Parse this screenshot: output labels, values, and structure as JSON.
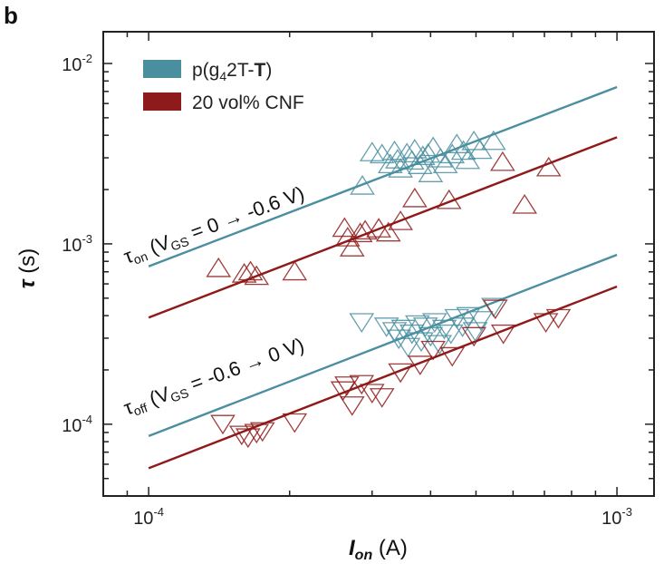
{
  "panel_label": "b",
  "colors": {
    "pristine": "#4a8fa0",
    "cnf": "#8e1a1a",
    "axis": "#222222"
  },
  "chart_data": {
    "type": "scatter",
    "xscale": "log",
    "yscale": "log",
    "xlim": [
      8e-05,
      0.0012
    ],
    "ylim": [
      4e-05,
      0.015
    ],
    "x_ticks": [
      {
        "base": "10",
        "exp": "-4",
        "value": 0.0001
      },
      {
        "base": "10",
        "exp": "-3",
        "value": 0.001
      }
    ],
    "y_ticks": [
      {
        "base": "10",
        "exp": "-4",
        "value": 0.0001
      },
      {
        "base": "10",
        "exp": "-3",
        "value": 0.001
      },
      {
        "base": "10",
        "exp": "-2",
        "value": 0.01
      }
    ],
    "xlabel": {
      "main": "I",
      "sub": "on",
      "unit": " (A)"
    },
    "ylabel": {
      "main": "τ",
      "unit": " (s)"
    },
    "legend": [
      {
        "label_pre": "p(g",
        "label_sub": "4",
        "label_mid": "2T-",
        "label_bold": "T",
        "label_post": ")",
        "color_key": "pristine"
      },
      {
        "label_pre": "20 vol% CNF",
        "label_sub": "",
        "label_mid": "",
        "label_bold": "",
        "label_post": "",
        "color_key": "cnf"
      }
    ],
    "annotations": [
      {
        "tau": "τ",
        "tau_sub": "on",
        "pre": " (V",
        "vsub": "GS",
        "post": " = 0 → -0.6 V)"
      },
      {
        "tau": "τ",
        "tau_sub": "off",
        "pre": " (V",
        "vsub": "GS",
        "post": " = -0.6 → 0 V)"
      }
    ],
    "fit_lines": [
      {
        "color_key": "pristine",
        "x": [
          0.0001,
          0.001
        ],
        "y": [
          0.00075,
          0.0074
        ]
      },
      {
        "color_key": "cnf",
        "x": [
          0.0001,
          0.001
        ],
        "y": [
          0.00039,
          0.0039
        ]
      },
      {
        "color_key": "pristine",
        "x": [
          0.0001,
          0.001
        ],
        "y": [
          8.6e-05,
          0.00087
        ]
      },
      {
        "color_key": "cnf",
        "x": [
          0.0001,
          0.001
        ],
        "y": [
          5.7e-05,
          0.00058
        ]
      }
    ],
    "series": [
      {
        "name": "p(g42T-T) τon",
        "color_key": "pristine",
        "marker": "triangle-up",
        "points": [
          [
            0.000286,
            0.00209
          ],
          [
            0.0003,
            0.0032
          ],
          [
            0.000315,
            0.00312
          ],
          [
            0.000328,
            0.00275
          ],
          [
            0.000335,
            0.00325
          ],
          [
            0.00034,
            0.00292
          ],
          [
            0.000345,
            0.0026
          ],
          [
            0.000356,
            0.00316
          ],
          [
            0.000365,
            0.00288
          ],
          [
            0.00037,
            0.00332
          ],
          [
            0.00038,
            0.00272
          ],
          [
            0.000385,
            0.00305
          ],
          [
            0.000395,
            0.00314
          ],
          [
            0.0004,
            0.00245
          ],
          [
            0.000405,
            0.00342
          ],
          [
            0.00042,
            0.00296
          ],
          [
            0.00043,
            0.00275
          ],
          [
            0.000445,
            0.00312
          ],
          [
            0.000455,
            0.00355
          ],
          [
            0.00047,
            0.00326
          ],
          [
            0.00048,
            0.0029
          ],
          [
            0.000495,
            0.00369
          ],
          [
            0.00051,
            0.0033
          ],
          [
            0.000545,
            0.0037
          ]
        ]
      },
      {
        "name": "20 vol% CNF τon",
        "color_key": "cnf",
        "marker": "triangle-up",
        "points": [
          [
            0.000141,
            0.00073
          ],
          [
            0.00016,
            0.00068
          ],
          [
            0.000165,
            0.0007
          ],
          [
            0.00017,
            0.00066
          ],
          [
            0.000205,
            0.0007
          ],
          [
            0.000262,
            0.00122
          ],
          [
            0.000266,
            0.00108
          ],
          [
            0.000272,
            0.00095
          ],
          [
            0.000283,
            0.00114
          ],
          [
            0.00029,
            0.00118
          ],
          [
            0.00031,
            0.00121
          ],
          [
            0.000325,
            0.00115
          ],
          [
            0.000345,
            0.00133
          ],
          [
            0.00037,
            0.00178
          ],
          [
            0.000438,
            0.00174
          ],
          [
            0.00057,
            0.00283
          ],
          [
            0.000635,
            0.00164
          ],
          [
            0.000715,
            0.00264
          ]
        ]
      },
      {
        "name": "p(g42T-T) τoff",
        "color_key": "pristine",
        "marker": "triangle-down",
        "points": [
          [
            0.000285,
            0.00037
          ],
          [
            0.000322,
            0.00035
          ],
          [
            0.000335,
            0.00033
          ],
          [
            0.000342,
            0.0003
          ],
          [
            0.00035,
            0.00034
          ],
          [
            0.000358,
            0.00027
          ],
          [
            0.000365,
            0.00032
          ],
          [
            0.000375,
            0.00036
          ],
          [
            0.000382,
            0.00029
          ],
          [
            0.00039,
            0.00035
          ],
          [
            0.0004,
            0.00031
          ],
          [
            0.000408,
            0.00037
          ],
          [
            0.000418,
            0.00028
          ],
          [
            0.000428,
            0.00034
          ],
          [
            0.000442,
            0.00032
          ],
          [
            0.000455,
            0.00039
          ],
          [
            0.000468,
            0.00035
          ],
          [
            0.000482,
            0.0004
          ],
          [
            0.000498,
            0.00033
          ],
          [
            0.000512,
            0.00038
          ],
          [
            0.000545,
            0.00045
          ]
        ]
      },
      {
        "name": "20 vol% CNF τoff",
        "color_key": "cnf",
        "marker": "triangle-down",
        "points": [
          [
            0.000144,
            0.000101
          ],
          [
            0.000158,
            8.8e-05
          ],
          [
            0.000163,
            8.5e-05
          ],
          [
            0.00017,
            9e-05
          ],
          [
            0.000175,
            9.2e-05
          ],
          [
            0.000205,
            0.000103
          ],
          [
            0.00026,
            0.000155
          ],
          [
            0.000265,
            0.000165
          ],
          [
            0.000272,
            0.000128
          ],
          [
            0.000285,
            0.000168
          ],
          [
            0.0003,
            0.00015
          ],
          [
            0.000315,
            0.000142
          ],
          [
            0.000345,
            0.000195
          ],
          [
            0.00038,
            0.000215
          ],
          [
            0.000405,
            0.00026
          ],
          [
            0.000445,
            0.00024
          ],
          [
            0.000495,
            0.00031
          ],
          [
            0.00055,
            0.00044
          ],
          [
            0.000572,
            0.00032
          ],
          [
            0.000705,
            0.00037
          ],
          [
            0.00075,
            0.00039
          ]
        ]
      }
    ]
  }
}
